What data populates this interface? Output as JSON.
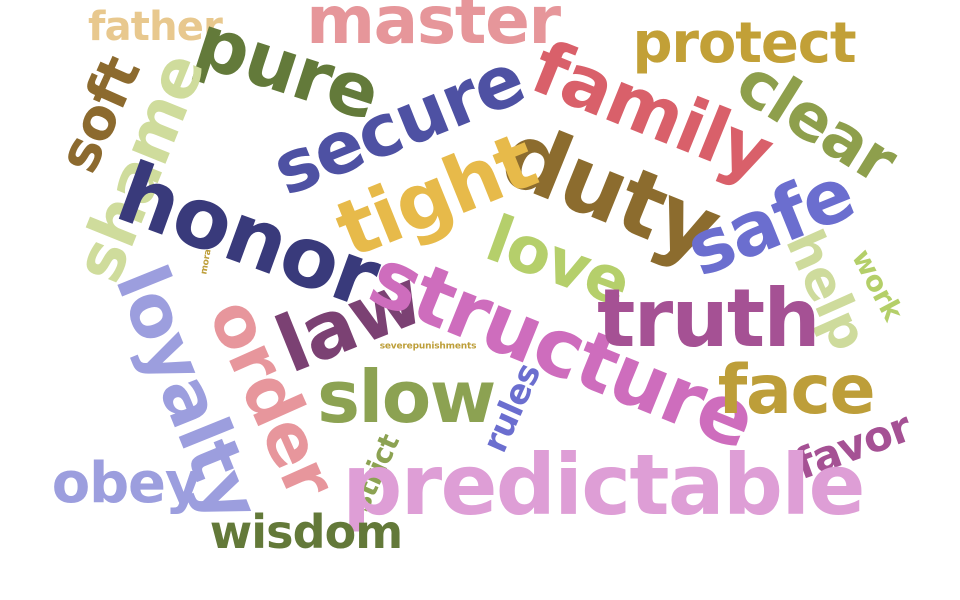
{
  "cloud": {
    "words": [
      {
        "text": "father",
        "color": "#e8c88e"
      },
      {
        "text": "master",
        "color": "#e6969a"
      },
      {
        "text": "protect",
        "color": "#c2a037"
      },
      {
        "text": "pure",
        "color": "#637a3a"
      },
      {
        "text": "family",
        "color": "#d9606a"
      },
      {
        "text": "soft",
        "color": "#8c6a2e"
      },
      {
        "text": "shame",
        "color": "#cfdc9c"
      },
      {
        "text": "secure",
        "color": "#4e51a3"
      },
      {
        "text": "clear",
        "color": "#8e9f4c"
      },
      {
        "text": "duty",
        "color": "#8c6c2e"
      },
      {
        "text": "tight",
        "color": "#e7ba4a"
      },
      {
        "text": "honor",
        "color": "#393a7b"
      },
      {
        "text": "safe",
        "color": "#6b6ecf"
      },
      {
        "text": "help",
        "color": "#cedb9c"
      },
      {
        "text": "work",
        "color": "#b4cf69"
      },
      {
        "text": "love",
        "color": "#b5cf6b"
      },
      {
        "text": "mora",
        "color": "#bd9e39"
      },
      {
        "text": "law",
        "color": "#7b4173"
      },
      {
        "text": "structure",
        "color": "#ce6dbd"
      },
      {
        "text": "truth",
        "color": "#a55194"
      },
      {
        "text": "loyalty",
        "color": "#9c9ede"
      },
      {
        "text": "order",
        "color": "#e7969c"
      },
      {
        "text": "severepunishments",
        "color": "#bd9e39"
      },
      {
        "text": "slow",
        "color": "#8ca252"
      },
      {
        "text": "rules",
        "color": "#6b6ecf"
      },
      {
        "text": "face",
        "color": "#bd9e39"
      },
      {
        "text": "favor",
        "color": "#a55194"
      },
      {
        "text": "strict",
        "color": "#8ca252"
      },
      {
        "text": "predictable",
        "color": "#de9ed6"
      },
      {
        "text": "obey",
        "color": "#9c9ede"
      },
      {
        "text": "wisdom",
        "color": "#637939"
      }
    ]
  }
}
